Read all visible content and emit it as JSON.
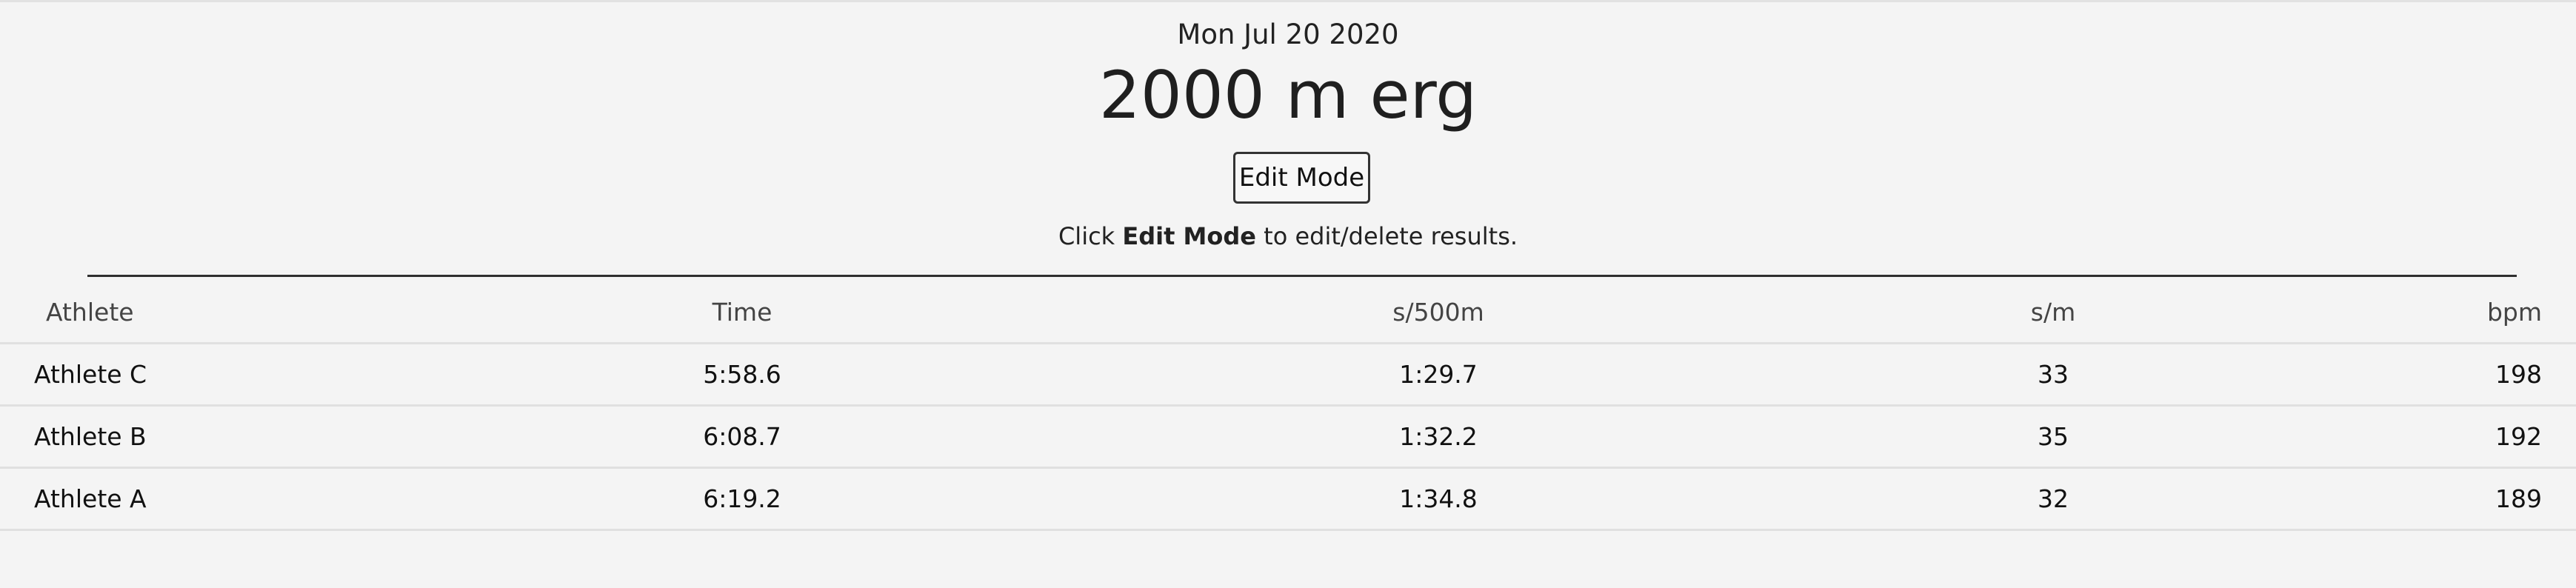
{
  "header": {
    "date": "Mon Jul 20 2020",
    "title": "2000 m erg",
    "edit_button_label": "Edit Mode",
    "hint_prefix": "Click ",
    "hint_emphasis": "Edit Mode",
    "hint_suffix": " to edit/delete results."
  },
  "table": {
    "columns": [
      "Athlete",
      "Time",
      "s/500m",
      "s/m",
      "bpm"
    ],
    "rows": [
      {
        "athlete": "Athlete C",
        "time": "5:58.6",
        "split": "1:29.7",
        "spm": "33",
        "bpm": "198"
      },
      {
        "athlete": "Athlete B",
        "time": "6:08.7",
        "split": "1:32.2",
        "spm": "35",
        "bpm": "192"
      },
      {
        "athlete": "Athlete A",
        "time": "6:19.2",
        "split": "1:34.8",
        "spm": "32",
        "bpm": "189"
      }
    ]
  },
  "colors": {
    "background": "#f4f4f4",
    "text": "#222222",
    "divider": "#2f2f2f",
    "row_border": "#e0e0e0"
  }
}
